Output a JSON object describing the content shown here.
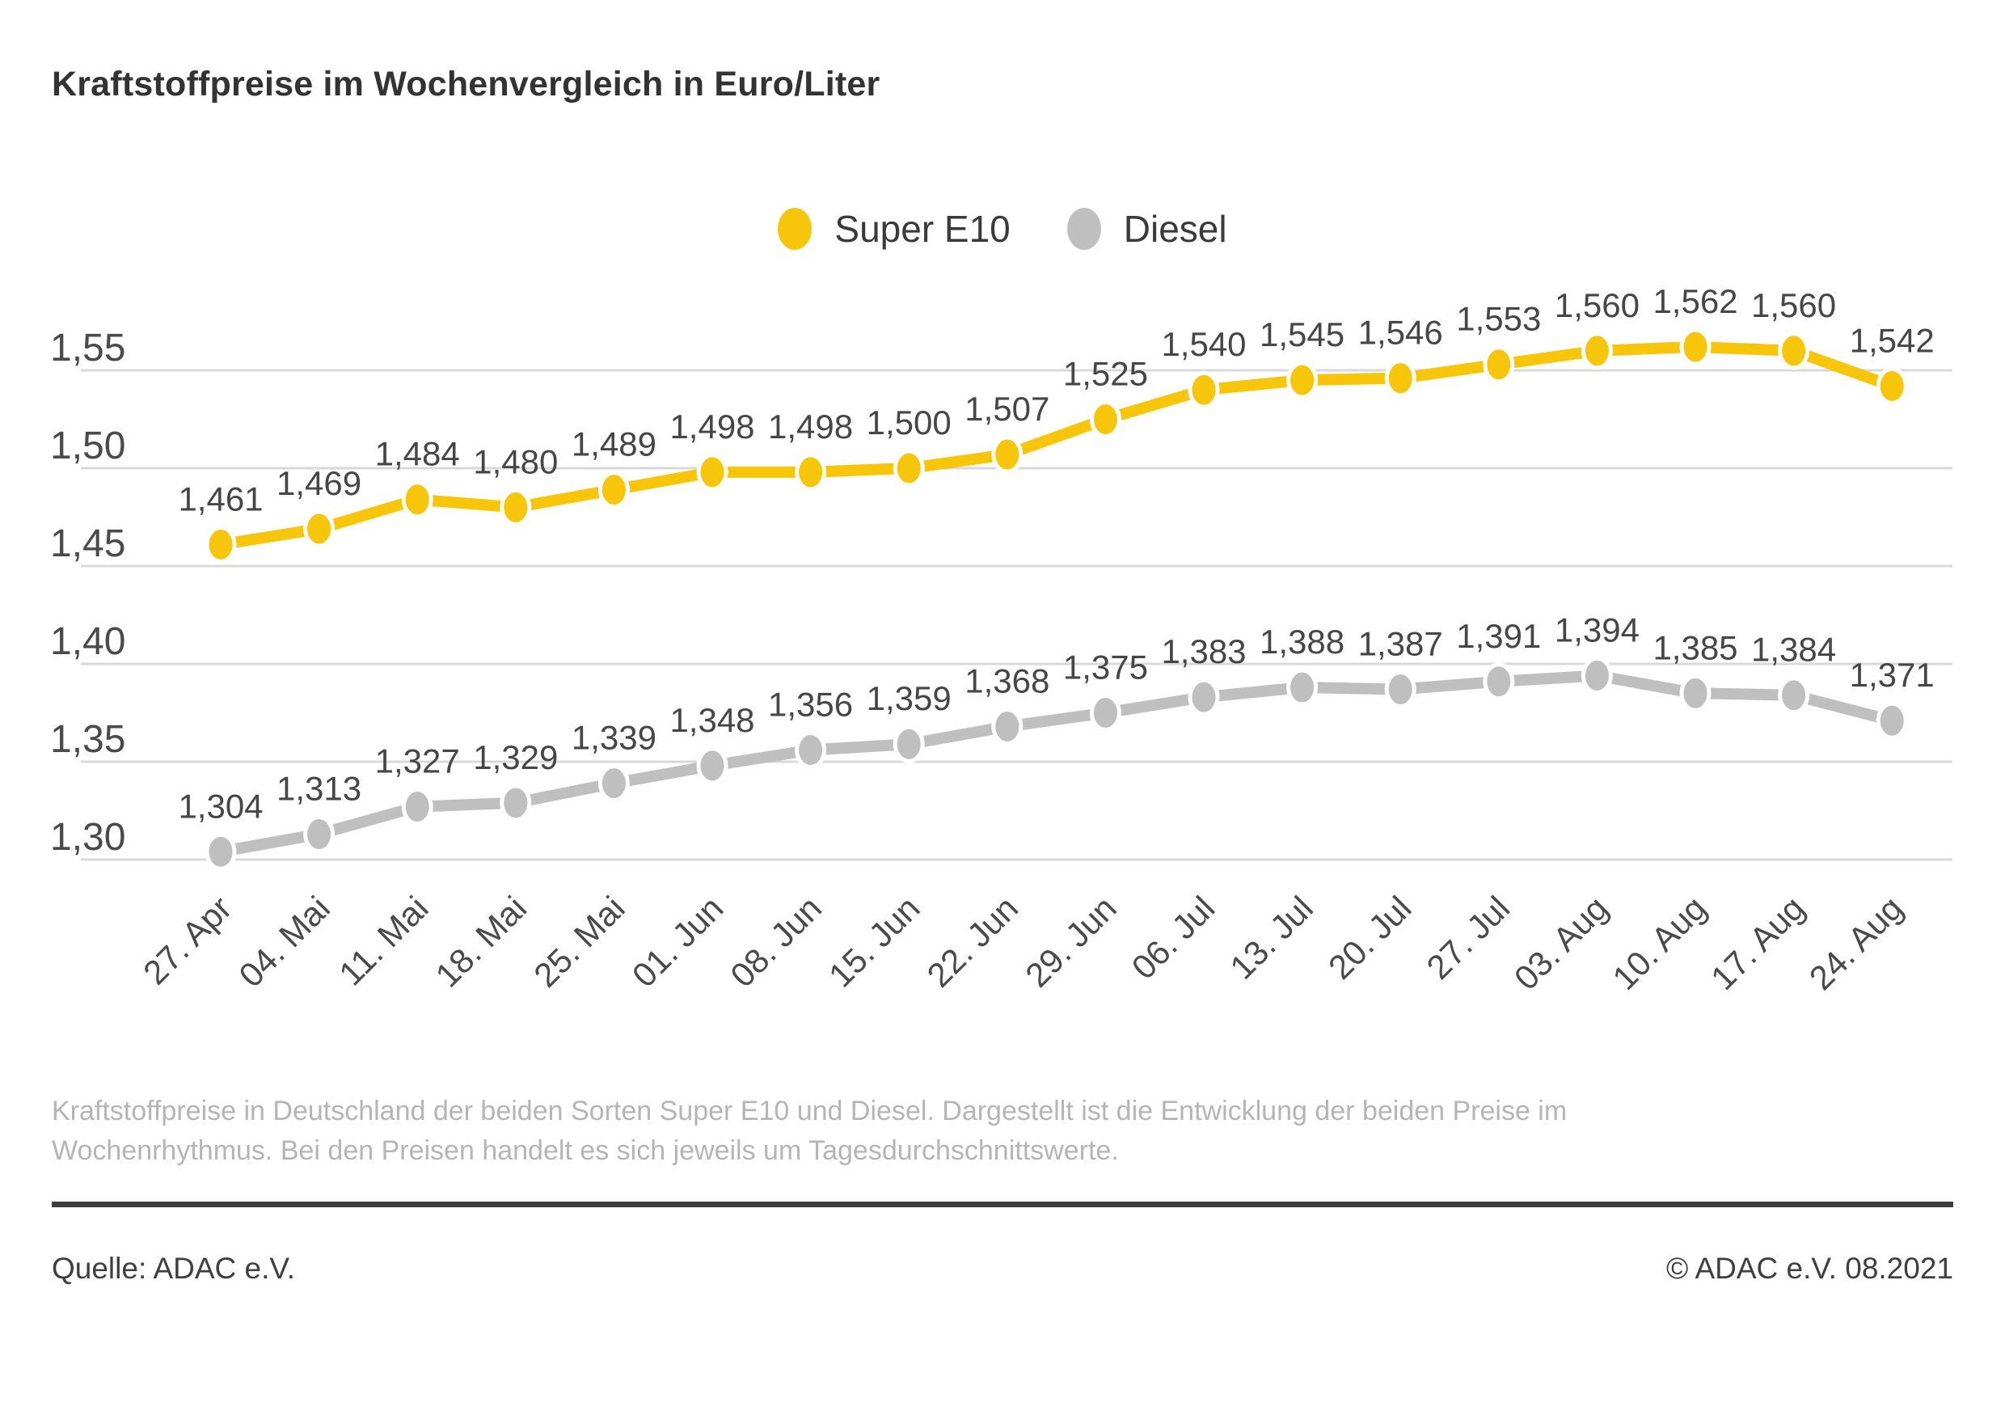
{
  "title": "Kraftstoffpreise im Wochenvergleich in Euro/Liter",
  "chart_data": {
    "type": "line",
    "title": "Kraftstoffpreise im Wochenvergleich in Euro/Liter",
    "categories": [
      "27. Apr",
      "04. Mai",
      "11. Mai",
      "18. Mai",
      "25. Mai",
      "01. Jun",
      "08. Jun",
      "15. Jun",
      "22. Jun",
      "29. Jun",
      "06. Jul",
      "13. Jul",
      "20. Jul",
      "27. Jul",
      "03. Aug",
      "10. Aug",
      "17. Aug",
      "24. Aug"
    ],
    "series": [
      {
        "name": "Super E10",
        "color": "#F7C60A",
        "values": [
          1.461,
          1.469,
          1.484,
          1.48,
          1.489,
          1.498,
          1.498,
          1.5,
          1.507,
          1.525,
          1.54,
          1.545,
          1.546,
          1.553,
          1.56,
          1.562,
          1.56,
          1.542
        ]
      },
      {
        "name": "Diesel",
        "color": "#BFBFBF",
        "values": [
          1.304,
          1.313,
          1.327,
          1.329,
          1.339,
          1.348,
          1.356,
          1.359,
          1.368,
          1.375,
          1.383,
          1.388,
          1.387,
          1.391,
          1.394,
          1.385,
          1.384,
          1.371
        ]
      }
    ],
    "unit": "Euro/Liter",
    "ylim": [
      1.3,
      1.55
    ],
    "ytick_step": 0.05,
    "ytick_labels": [
      "1,55",
      "1,50",
      "1,45",
      "1,40",
      "1,35",
      "1,30"
    ],
    "grid": true,
    "legend_position": "top-center",
    "value_labels": true,
    "decimal_separator": ",",
    "grid_color": "#D9D9D9"
  },
  "footnote": {
    "text": "Kraftstoffpreise in Deutschland der beiden Sorten Super E10 und Diesel. Dargestellt ist die Entwicklung der beiden Preise im Wochenrhythmus. Bei den Preisen handelt es sich jeweils um Tagesdurchschnittswerte."
  },
  "footer": {
    "source": "Quelle: ADAC e.V.",
    "copyright": "© ADAC e.V. 08.2021"
  }
}
